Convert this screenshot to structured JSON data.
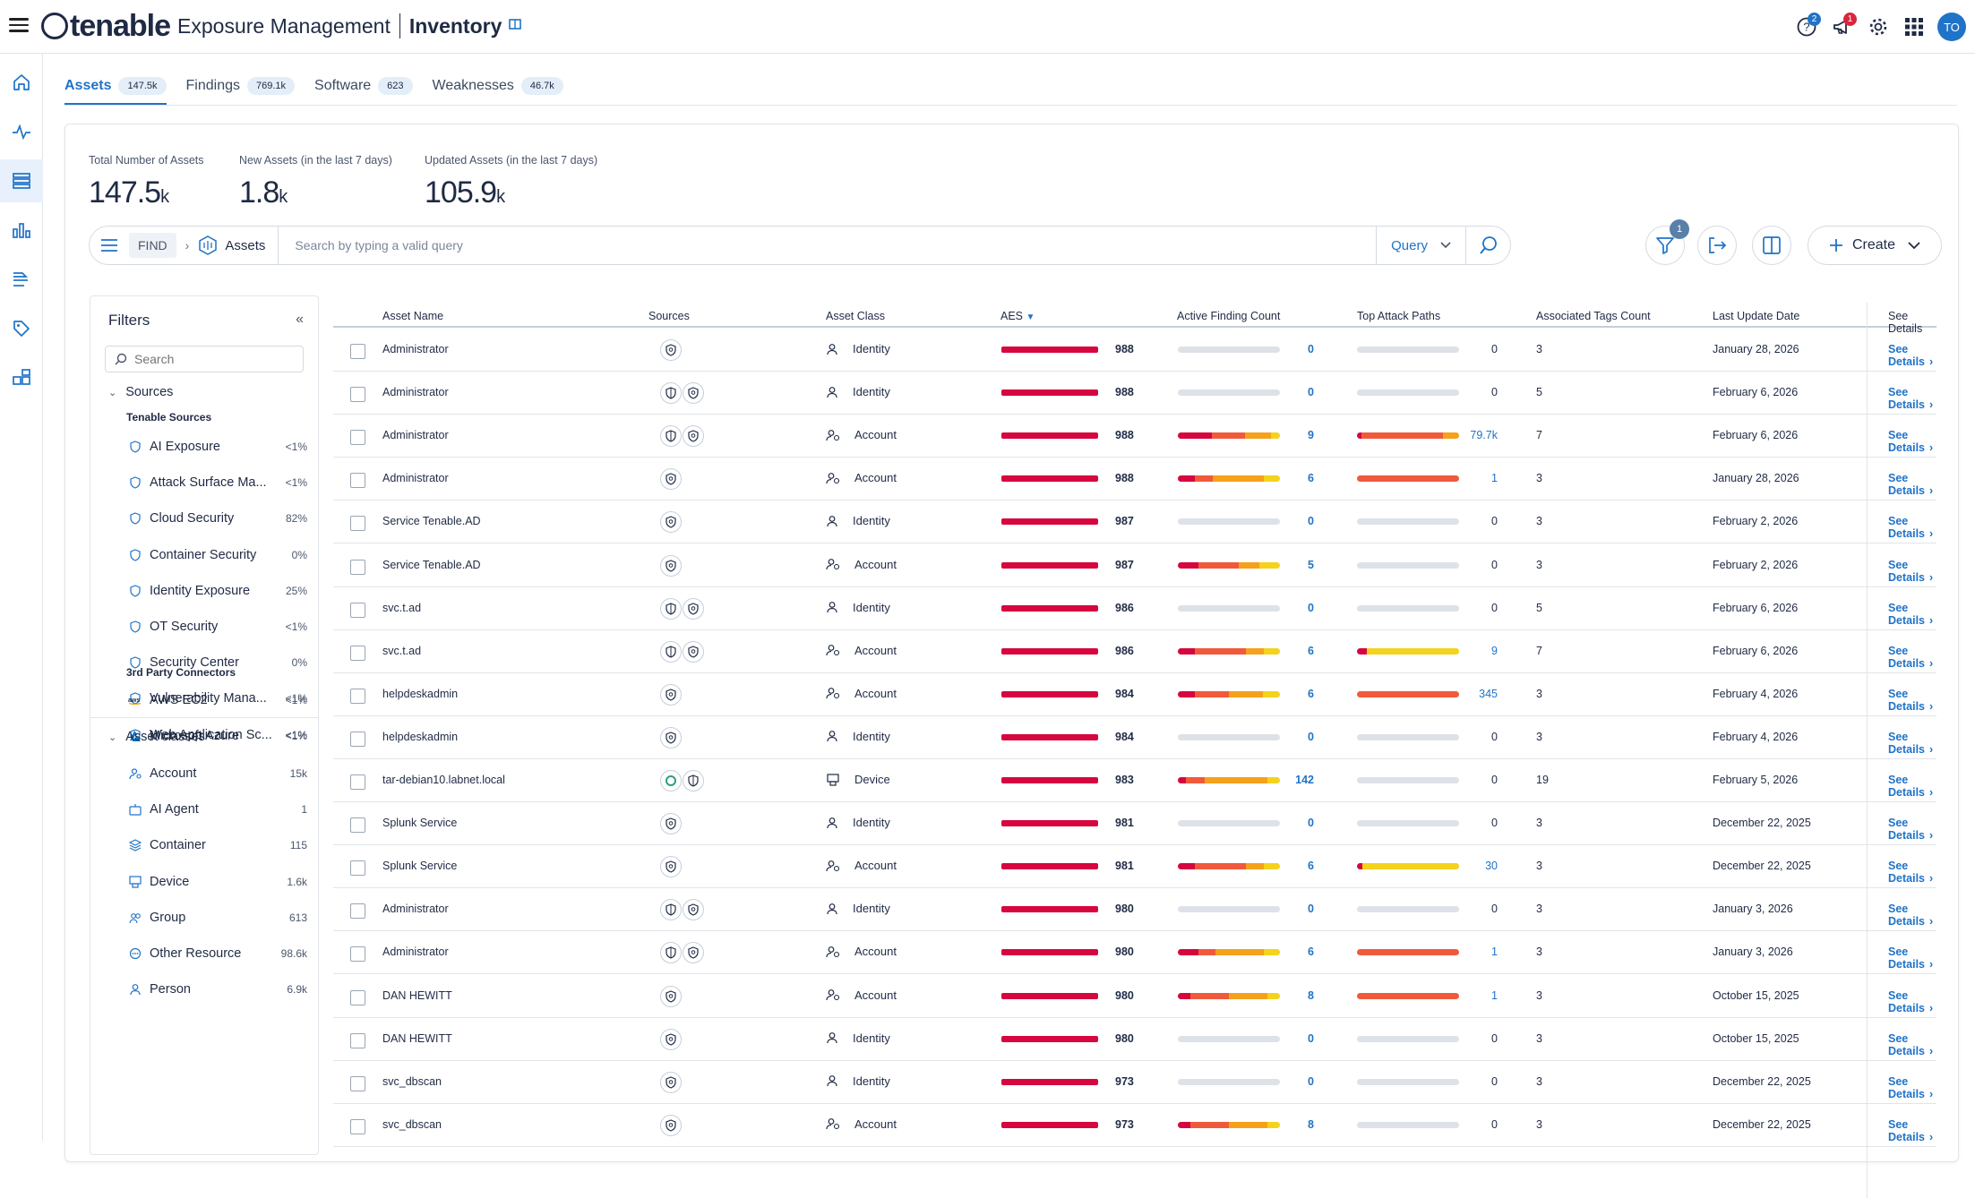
{
  "header": {
    "brand": "tenable",
    "product": "Exposure Management",
    "section": "Inventory",
    "help_badge": "2",
    "notify_badge": "1",
    "avatar": "TO"
  },
  "tabs": [
    {
      "label": "Assets",
      "count": "147.5k"
    },
    {
      "label": "Findings",
      "count": "769.1k"
    },
    {
      "label": "Software",
      "count": "623"
    },
    {
      "label": "Weaknesses",
      "count": "46.7k"
    }
  ],
  "stats": [
    {
      "label": "Total Number of Assets",
      "value": "147.5",
      "unit": "k"
    },
    {
      "label": "New Assets (in the last 7 days)",
      "value": "1.8",
      "unit": "k"
    },
    {
      "label": "Updated Assets (in the last 7 days)",
      "value": "105.9",
      "unit": "k"
    }
  ],
  "query": {
    "find": "FIND",
    "entity": "Assets",
    "placeholder": "Search by typing a valid query",
    "mode": "Query",
    "filter_badge": "1",
    "create": "Create"
  },
  "filters": {
    "title": "Filters",
    "search_placeholder": "Search",
    "sources_label": "Sources",
    "tenable_sources_label": "Tenable Sources",
    "tenable_sources": [
      {
        "name": "AI Exposure",
        "pct": "<1%"
      },
      {
        "name": "Attack Surface Ma...",
        "pct": "<1%"
      },
      {
        "name": "Cloud Security",
        "pct": "82%"
      },
      {
        "name": "Container Security",
        "pct": "0%"
      },
      {
        "name": "Identity Exposure",
        "pct": "25%"
      },
      {
        "name": "OT Security",
        "pct": "<1%"
      },
      {
        "name": "Security Center",
        "pct": "0%"
      },
      {
        "name": "Vulnerability Mana...",
        "pct": "<1%"
      },
      {
        "name": "Web Application Sc...",
        "pct": "<1%"
      }
    ],
    "third_party_label": "3rd Party Connectors",
    "third_party": [
      {
        "name": "AWS EC2",
        "pct": "<1%"
      },
      {
        "name": "Microsoft Azure",
        "pct": "<1%"
      }
    ],
    "asset_classes_label": "Asset classes",
    "asset_classes": [
      {
        "name": "Account",
        "pct": "15k"
      },
      {
        "name": "AI Agent",
        "pct": "1"
      },
      {
        "name": "Container",
        "pct": "115"
      },
      {
        "name": "Device",
        "pct": "1.6k"
      },
      {
        "name": "Group",
        "pct": "613"
      },
      {
        "name": "Other Resource",
        "pct": "98.6k"
      },
      {
        "name": "Person",
        "pct": "6.9k"
      }
    ]
  },
  "table": {
    "columns": [
      "Asset Name",
      "Sources",
      "Asset Class",
      "AES",
      "Active Finding Count",
      "Top Attack Paths",
      "Associated Tags Count",
      "Last Update Date",
      "See Details"
    ],
    "details_label": "See Details",
    "rows": [
      {
        "name": "Administrator",
        "sources": [
          "shield"
        ],
        "cls": "Identity",
        "aes": "988",
        "afc": "0",
        "afc_bar": [],
        "tap": "0",
        "tap_link": false,
        "tap_bar": [],
        "tags": "3",
        "date": "January 28, 2026"
      },
      {
        "name": "Administrator",
        "sources": [
          "shield-half",
          "shield"
        ],
        "cls": "Identity",
        "aes": "988",
        "afc": "0",
        "afc_bar": [],
        "tap": "0",
        "tap_link": false,
        "tap_bar": [],
        "tags": "5",
        "date": "February 6, 2026"
      },
      {
        "name": "Administrator",
        "sources": [
          "shield-half",
          "shield"
        ],
        "cls": "Account",
        "aes": "988",
        "afc": "9",
        "afc_bar": [
          [
            "#d6073f",
            0.33
          ],
          [
            "#f05a3c",
            0.33
          ],
          [
            "#f5a11c",
            0.25
          ],
          [
            "#f5d21c",
            0.09
          ]
        ],
        "tap": "79.7k",
        "tap_link": true,
        "tap_bar": [
          [
            "#d6073f",
            0.04
          ],
          [
            "#f05a3c",
            0.8
          ],
          [
            "#f5a11c",
            0.16
          ]
        ],
        "tags": "7",
        "date": "February 6, 2026"
      },
      {
        "name": "Administrator",
        "sources": [
          "shield"
        ],
        "cls": "Account",
        "aes": "988",
        "afc": "6",
        "afc_bar": [
          [
            "#d6073f",
            0.17
          ],
          [
            "#f05a3c",
            0.17
          ],
          [
            "#f5a11c",
            0.5
          ],
          [
            "#f5d21c",
            0.16
          ]
        ],
        "tap": "1",
        "tap_link": true,
        "tap_bar": [
          [
            "#f05a3c",
            1.0
          ]
        ],
        "tags": "3",
        "date": "January 28, 2026"
      },
      {
        "name": "Service Tenable.AD",
        "sources": [
          "shield"
        ],
        "cls": "Identity",
        "aes": "987",
        "afc": "0",
        "afc_bar": [],
        "tap": "0",
        "tap_link": false,
        "tap_bar": [],
        "tags": "3",
        "date": "February 2, 2026"
      },
      {
        "name": "Service Tenable.AD",
        "sources": [
          "shield"
        ],
        "cls": "Account",
        "aes": "987",
        "afc": "5",
        "afc_bar": [
          [
            "#d6073f",
            0.2
          ],
          [
            "#f05a3c",
            0.4
          ],
          [
            "#f5a11c",
            0.2
          ],
          [
            "#f5d21c",
            0.2
          ]
        ],
        "tap": "0",
        "tap_link": false,
        "tap_bar": [],
        "tags": "3",
        "date": "February 2, 2026"
      },
      {
        "name": "svc.t.ad",
        "sources": [
          "shield-half",
          "shield"
        ],
        "cls": "Identity",
        "aes": "986",
        "afc": "0",
        "afc_bar": [],
        "tap": "0",
        "tap_link": false,
        "tap_bar": [],
        "tags": "5",
        "date": "February 6, 2026"
      },
      {
        "name": "svc.t.ad",
        "sources": [
          "shield-half",
          "shield"
        ],
        "cls": "Account",
        "aes": "986",
        "afc": "6",
        "afc_bar": [
          [
            "#d6073f",
            0.17
          ],
          [
            "#f05a3c",
            0.5
          ],
          [
            "#f5a11c",
            0.17
          ],
          [
            "#f5d21c",
            0.16
          ]
        ],
        "tap": "9",
        "tap_link": true,
        "tap_bar": [
          [
            "#d6073f",
            0.1
          ],
          [
            "#f5d21c",
            0.9
          ]
        ],
        "tags": "7",
        "date": "February 6, 2026"
      },
      {
        "name": "helpdeskadmin",
        "sources": [
          "shield"
        ],
        "cls": "Account",
        "aes": "984",
        "afc": "6",
        "afc_bar": [
          [
            "#d6073f",
            0.17
          ],
          [
            "#f05a3c",
            0.33
          ],
          [
            "#f5a11c",
            0.33
          ],
          [
            "#f5d21c",
            0.17
          ]
        ],
        "tap": "345",
        "tap_link": true,
        "tap_bar": [
          [
            "#f05a3c",
            1.0
          ]
        ],
        "tags": "3",
        "date": "February 4, 2026"
      },
      {
        "name": "helpdeskadmin",
        "sources": [
          "shield"
        ],
        "cls": "Identity",
        "aes": "984",
        "afc": "0",
        "afc_bar": [],
        "tap": "0",
        "tap_link": false,
        "tap_bar": [],
        "tags": "3",
        "date": "February 4, 2026"
      },
      {
        "name": "tar-debian10.labnet.local",
        "sources": [
          "ring",
          "shield-half"
        ],
        "cls": "Device",
        "aes": "983",
        "afc": "142",
        "afc_bar": [
          [
            "#d6073f",
            0.08
          ],
          [
            "#f05a3c",
            0.18
          ],
          [
            "#f5a11c",
            0.62
          ],
          [
            "#f5d21c",
            0.12
          ]
        ],
        "tap": "0",
        "tap_link": false,
        "tap_bar": [],
        "tags": "19",
        "date": "February 5, 2026"
      },
      {
        "name": "Splunk Service",
        "sources": [
          "shield"
        ],
        "cls": "Identity",
        "aes": "981",
        "afc": "0",
        "afc_bar": [],
        "tap": "0",
        "tap_link": false,
        "tap_bar": [],
        "tags": "3",
        "date": "December 22, 2025"
      },
      {
        "name": "Splunk Service",
        "sources": [
          "shield"
        ],
        "cls": "Account",
        "aes": "981",
        "afc": "6",
        "afc_bar": [
          [
            "#d6073f",
            0.17
          ],
          [
            "#f05a3c",
            0.5
          ],
          [
            "#f5a11c",
            0.17
          ],
          [
            "#f5d21c",
            0.16
          ]
        ],
        "tap": "30",
        "tap_link": true,
        "tap_bar": [
          [
            "#d6073f",
            0.05
          ],
          [
            "#f5d21c",
            0.95
          ]
        ],
        "tags": "3",
        "date": "December 22, 2025"
      },
      {
        "name": "Administrator",
        "sources": [
          "shield-half",
          "shield"
        ],
        "cls": "Identity",
        "aes": "980",
        "afc": "0",
        "afc_bar": [],
        "tap": "0",
        "tap_link": false,
        "tap_bar": [],
        "tags": "3",
        "date": "January 3, 2026"
      },
      {
        "name": "Administrator",
        "sources": [
          "shield-half",
          "shield"
        ],
        "cls": "Account",
        "aes": "980",
        "afc": "6",
        "afc_bar": [
          [
            "#d6073f",
            0.2
          ],
          [
            "#f05a3c",
            0.17
          ],
          [
            "#f5a11c",
            0.47
          ],
          [
            "#f5d21c",
            0.16
          ]
        ],
        "tap": "1",
        "tap_link": true,
        "tap_bar": [
          [
            "#f05a3c",
            1.0
          ]
        ],
        "tags": "3",
        "date": "January 3, 2026"
      },
      {
        "name": "DAN HEWITT",
        "sources": [
          "shield"
        ],
        "cls": "Account",
        "aes": "980",
        "afc": "8",
        "afc_bar": [
          [
            "#d6073f",
            0.12
          ],
          [
            "#f05a3c",
            0.38
          ],
          [
            "#f5a11c",
            0.38
          ],
          [
            "#f5d21c",
            0.12
          ]
        ],
        "tap": "1",
        "tap_link": true,
        "tap_bar": [
          [
            "#f05a3c",
            1.0
          ]
        ],
        "tags": "3",
        "date": "October 15, 2025"
      },
      {
        "name": "DAN HEWITT",
        "sources": [
          "shield"
        ],
        "cls": "Identity",
        "aes": "980",
        "afc": "0",
        "afc_bar": [],
        "tap": "0",
        "tap_link": false,
        "tap_bar": [],
        "tags": "3",
        "date": "October 15, 2025"
      },
      {
        "name": "svc_dbscan",
        "sources": [
          "shield"
        ],
        "cls": "Identity",
        "aes": "973",
        "afc": "0",
        "afc_bar": [],
        "tap": "0",
        "tap_link": false,
        "tap_bar": [],
        "tags": "3",
        "date": "December 22, 2025"
      },
      {
        "name": "svc_dbscan",
        "sources": [
          "shield"
        ],
        "cls": "Account",
        "aes": "973",
        "afc": "8",
        "afc_bar": [
          [
            "#d6073f",
            0.12
          ],
          [
            "#f05a3c",
            0.38
          ],
          [
            "#f5a11c",
            0.38
          ],
          [
            "#f5d21c",
            0.12
          ]
        ],
        "tap": "0",
        "tap_link": false,
        "tap_bar": [],
        "tags": "3",
        "date": "December 22, 2025"
      }
    ]
  }
}
